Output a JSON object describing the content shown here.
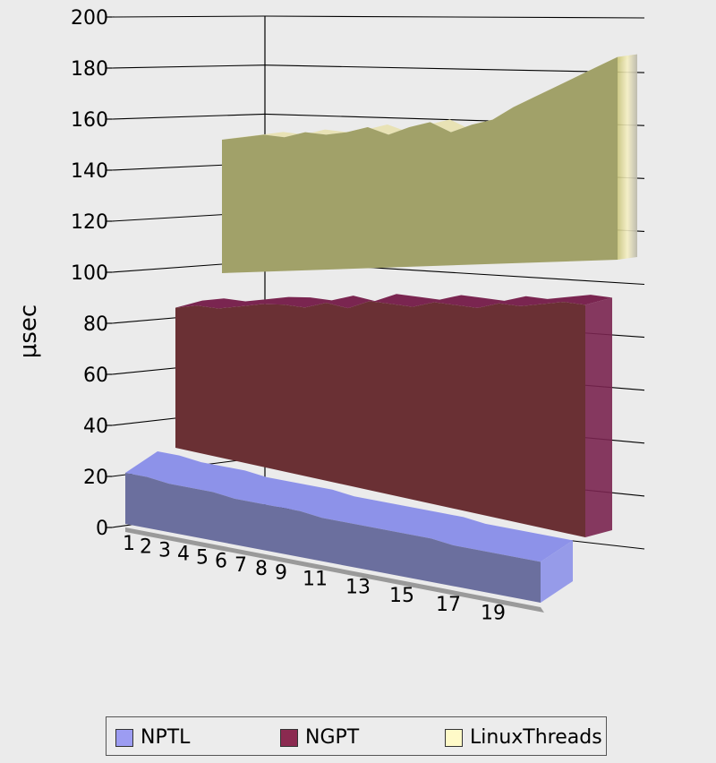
{
  "chart_data": {
    "type": "area",
    "subtype": "3d-stacked-area",
    "ylabel": "μsec",
    "xlabel": "",
    "ylim": [
      0,
      200
    ],
    "y_ticks": [
      "0",
      "20",
      "40",
      "60",
      "80",
      "100",
      "120",
      "140",
      "160",
      "180",
      "200"
    ],
    "x_tick_labels": [
      "1",
      "2",
      "3",
      "4",
      "5",
      "6",
      "7",
      "8",
      "9",
      "11",
      "13",
      "15",
      "17",
      "19"
    ],
    "x": [
      1,
      2,
      3,
      4,
      5,
      6,
      7,
      8,
      9,
      10,
      11,
      12,
      13,
      14,
      15,
      16,
      17,
      18,
      19,
      20
    ],
    "series": [
      {
        "name": "NPTL",
        "color": "#9c9cf2",
        "values": [
          20,
          20,
          19,
          19,
          19,
          18,
          18,
          18,
          18,
          17,
          17,
          17,
          17,
          17,
          17,
          16,
          16,
          16,
          16,
          16
        ]
      },
      {
        "name": "NGPT",
        "color": "#8b2a50",
        "values": [
          88,
          89,
          88,
          89,
          90,
          90,
          89,
          91,
          89,
          92,
          91,
          90,
          92,
          91,
          90,
          92,
          91,
          92,
          93,
          92
        ]
      },
      {
        "name": "LinuxThreads",
        "color": "#fffac8",
        "values": [
          155,
          156,
          157,
          156,
          158,
          157,
          158,
          160,
          157,
          160,
          162,
          158,
          161,
          163,
          168,
          172,
          176,
          180,
          184,
          188
        ]
      }
    ],
    "legend_position": "bottom",
    "grid": true
  }
}
